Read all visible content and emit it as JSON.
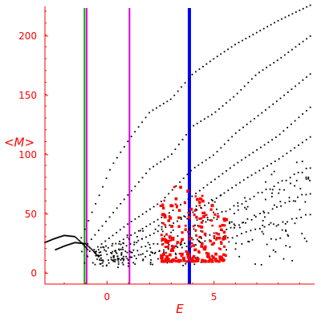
{
  "chart_data": {
    "type": "scatter",
    "title": "",
    "xlabel": "E",
    "ylabel": "<M>",
    "xlim": [
      -2.9,
      9.7
    ],
    "ylim": [
      -9,
      225
    ],
    "x_ticks": [
      0,
      5
    ],
    "y_ticks": [
      0,
      50,
      100,
      150,
      200
    ],
    "grid": false,
    "legend": "none",
    "colors": {
      "axis": "#ff0000",
      "data": "#000000",
      "highlight": "#ff0000",
      "vline_green": "#00aa00",
      "vline_magenta": "#dd00dd",
      "vline_blue": "#0000ff"
    },
    "vertical_lines": [
      {
        "x": -1.05,
        "color": "#00aa00"
      },
      {
        "x": -0.95,
        "color": "#dd00dd"
      },
      {
        "x": 1.05,
        "color": "#dd00dd"
      },
      {
        "x": 3.85,
        "color": "#0000ff"
      }
    ],
    "series": [
      {
        "color": "#000000",
        "marker": "dot",
        "bands": [
          {
            "x": [
              -1.2,
              0.2,
              1.0,
              2.0,
              3.0,
              4.0,
              5.0,
              6.0,
              7.0,
              8.0,
              9.5
            ],
            "y": [
              30,
              90,
              112,
              136,
              147,
              168,
              181,
              193,
              203,
              213,
              226
            ]
          },
          {
            "x": [
              -0.9,
              0.6,
              2.0,
              3.0,
              4.0,
              5.0,
              6.0,
              7.0,
              8.0,
              9.5
            ],
            "y": [
              25,
              58,
              88,
              100,
              124,
              135,
              150,
              168,
              180,
              200
            ]
          },
          {
            "x": [
              -0.6,
              1.0,
              2.5,
              4.0,
              5.0,
              6.0,
              7.0,
              8.0,
              9.5
            ],
            "y": [
              20,
              42,
              60,
              88,
              100,
              118,
              132,
              146,
              168
            ]
          },
          {
            "x": [
              -0.3,
              1.5,
              3.0,
              4.5,
              6.0,
              7.0,
              8.0,
              9.5
            ],
            "y": [
              18,
              36,
              52,
              72,
              92,
              104,
              116,
              140
            ]
          },
          {
            "x": [
              0.0,
              2.0,
              3.5,
              5.0,
              6.5,
              8.0,
              9.5
            ],
            "y": [
              16,
              32,
              46,
              62,
              80,
              96,
              115
            ]
          },
          {
            "x": [
              0.3,
              2.5,
              4.0,
              5.5,
              7.0,
              8.5,
              9.5
            ],
            "y": [
              14,
              26,
              38,
              52,
              66,
              80,
              90
            ]
          },
          {
            "x": [
              0.5,
              2.5,
              4.5,
              6.0,
              7.5,
              9.5
            ],
            "y": [
              12,
              20,
              30,
              40,
              52,
              68
            ]
          },
          {
            "x": [
              0.3,
              2.0,
              4.0,
              6.0,
              8.0,
              9.5
            ],
            "y": [
              10,
              16,
              24,
              32,
              42,
              50
            ]
          }
        ],
        "tail": {
          "x": [
            -2.9,
            -2.5,
            -2.0,
            -1.5,
            -1.2,
            -0.9
          ],
          "y": [
            26,
            29,
            32,
            31,
            26,
            20
          ]
        }
      },
      {
        "color": "#ff0000",
        "marker": "square",
        "center": [
          3.6,
          28
        ],
        "x_range": [
          2.5,
          5.6
        ],
        "y_range": [
          10,
          85
        ]
      }
    ]
  }
}
